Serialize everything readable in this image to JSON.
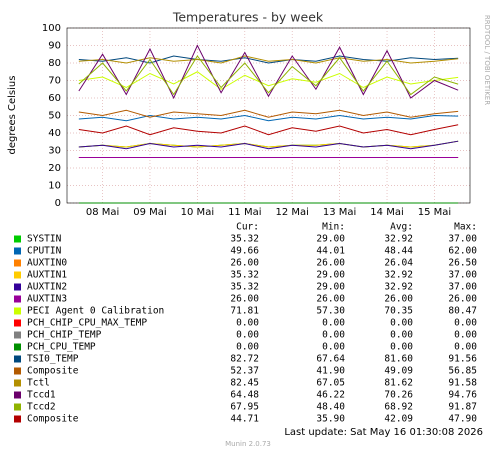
{
  "chart_data": {
    "type": "line",
    "title": "Temperatures - by week",
    "y_label": "degrees Celsius",
    "side_text": "RRDTOOL / TOBI OETIKER",
    "footer": "Munin 2.0.73",
    "last_update": "Last update: Sat May 16 01:30:08 2026",
    "column_headers": [
      "Cur:",
      "Min:",
      "Avg:",
      "Max:"
    ],
    "categories": [
      null,
      "08 Mai",
      null,
      "09 Mai",
      null,
      "10 Mai",
      null,
      "11 Mai",
      null,
      "12 Mai",
      null,
      "13 Mai",
      null,
      "14 Mai",
      null,
      "15 Mai",
      null
    ],
    "ylim": [
      0,
      100
    ],
    "yticks": [
      0,
      10,
      20,
      30,
      40,
      50,
      60,
      70,
      80,
      90,
      100
    ],
    "grid": true,
    "series": [
      {
        "name": "SYSTIN",
        "color": "#00cc00",
        "values": [
          32,
          33,
          32,
          34,
          33,
          32,
          33,
          34,
          32,
          33,
          33,
          34,
          32,
          33,
          32,
          33,
          35.32
        ],
        "stats": [
          "35.32",
          "29.00",
          "32.92",
          "37.00"
        ]
      },
      {
        "name": "CPUTIN",
        "color": "#0066b3",
        "values": [
          48,
          49,
          47,
          50,
          48,
          49,
          48,
          50,
          47,
          49,
          48,
          50,
          48,
          49,
          48,
          50,
          49.66
        ],
        "stats": [
          "49.66",
          "44.01",
          "48.44",
          "62.00"
        ]
      },
      {
        "name": "AUXTIN0",
        "color": "#ff8000",
        "values": [
          26,
          26,
          26,
          26,
          26,
          26,
          26,
          26,
          26,
          26,
          26,
          26,
          26,
          26,
          26,
          26,
          26
        ],
        "stats": [
          "26.00",
          "26.00",
          "26.04",
          "26.50"
        ]
      },
      {
        "name": "AUXTIN1",
        "color": "#ffcc00",
        "values": [
          32,
          33,
          32,
          34,
          33,
          32,
          33,
          34,
          32,
          33,
          33,
          34,
          32,
          33,
          32,
          33,
          35.32
        ],
        "stats": [
          "35.32",
          "29.00",
          "32.92",
          "37.00"
        ]
      },
      {
        "name": "AUXTIN2",
        "color": "#330099",
        "values": [
          32,
          33,
          31,
          34,
          32,
          33,
          32,
          34,
          31,
          33,
          32,
          34,
          32,
          33,
          31,
          33,
          35.32
        ],
        "stats": [
          "35.32",
          "29.00",
          "32.92",
          "37.00"
        ]
      },
      {
        "name": "AUXTIN3",
        "color": "#990099",
        "values": [
          26,
          26,
          26,
          26,
          26,
          26,
          26,
          26,
          26,
          26,
          26,
          26,
          26,
          26,
          26,
          26,
          26
        ],
        "stats": [
          "26.00",
          "26.00",
          "26.00",
          "26.00"
        ]
      },
      {
        "name": "PECI Agent 0 Calibration",
        "color": "#ccff00",
        "values": [
          70,
          72,
          66,
          74,
          68,
          75,
          65,
          73,
          67,
          71,
          69,
          74,
          66,
          72,
          68,
          70,
          71.81
        ],
        "stats": [
          "71.81",
          "57.30",
          "70.35",
          "80.47"
        ]
      },
      {
        "name": "PCH_CHIP_CPU_MAX_TEMP",
        "color": "#ff0000",
        "values": [
          0,
          0,
          0,
          0,
          0,
          0,
          0,
          0,
          0,
          0,
          0,
          0,
          0,
          0,
          0,
          0,
          0
        ],
        "stats": [
          "0.00",
          "0.00",
          "0.00",
          "0.00"
        ]
      },
      {
        "name": "PCH_CHIP_TEMP",
        "color": "#808080",
        "values": [
          0,
          0,
          0,
          0,
          0,
          0,
          0,
          0,
          0,
          0,
          0,
          0,
          0,
          0,
          0,
          0,
          0
        ],
        "stats": [
          "0.00",
          "0.00",
          "0.00",
          "0.00"
        ]
      },
      {
        "name": "PCH_CPU_TEMP",
        "color": "#008f00",
        "values": [
          0,
          0,
          0,
          0,
          0,
          0,
          0,
          0,
          0,
          0,
          0,
          0,
          0,
          0,
          0,
          0,
          0
        ],
        "stats": [
          "0.00",
          "0.00",
          "0.00",
          "0.00"
        ]
      },
      {
        "name": "TSI0_TEMP",
        "color": "#00487d",
        "values": [
          82,
          81,
          83,
          80,
          84,
          82,
          81,
          83,
          80,
          82,
          81,
          84,
          82,
          81,
          83,
          82,
          82.72
        ],
        "stats": [
          "82.72",
          "67.64",
          "81.60",
          "91.56"
        ]
      },
      {
        "name": "Composite",
        "color": "#b35a00",
        "values": [
          52,
          50,
          53,
          49,
          52,
          51,
          50,
          53,
          49,
          52,
          51,
          53,
          50,
          52,
          49,
          51,
          52.37
        ],
        "stats": [
          "52.37",
          "41.90",
          "49.09",
          "56.85"
        ]
      },
      {
        "name": "Tctl",
        "color": "#b38f00",
        "values": [
          81,
          82,
          80,
          83,
          81,
          82,
          80,
          84,
          81,
          82,
          80,
          83,
          81,
          82,
          80,
          81,
          82.45
        ],
        "stats": [
          "82.45",
          "67.05",
          "81.62",
          "91.58"
        ]
      },
      {
        "name": "Tccd1",
        "color": "#6b006b",
        "values": [
          64,
          85,
          62,
          88,
          60,
          90,
          63,
          86,
          61,
          84,
          65,
          89,
          62,
          87,
          60,
          70,
          64.48
        ],
        "stats": [
          "64.48",
          "46.22",
          "70.26",
          "94.76"
        ]
      },
      {
        "name": "Tccd2",
        "color": "#8fb300",
        "values": [
          68,
          80,
          64,
          82,
          62,
          84,
          66,
          80,
          63,
          78,
          67,
          83,
          64,
          81,
          62,
          72,
          67.95
        ],
        "stats": [
          "67.95",
          "48.40",
          "68.92",
          "91.87"
        ]
      },
      {
        "name": "Composite",
        "color": "#b30000",
        "values": [
          42,
          40,
          44,
          39,
          43,
          41,
          40,
          44,
          39,
          43,
          41,
          44,
          40,
          42,
          39,
          42,
          44.71
        ],
        "stats": [
          "44.71",
          "35.90",
          "42.09",
          "47.90"
        ]
      }
    ]
  }
}
